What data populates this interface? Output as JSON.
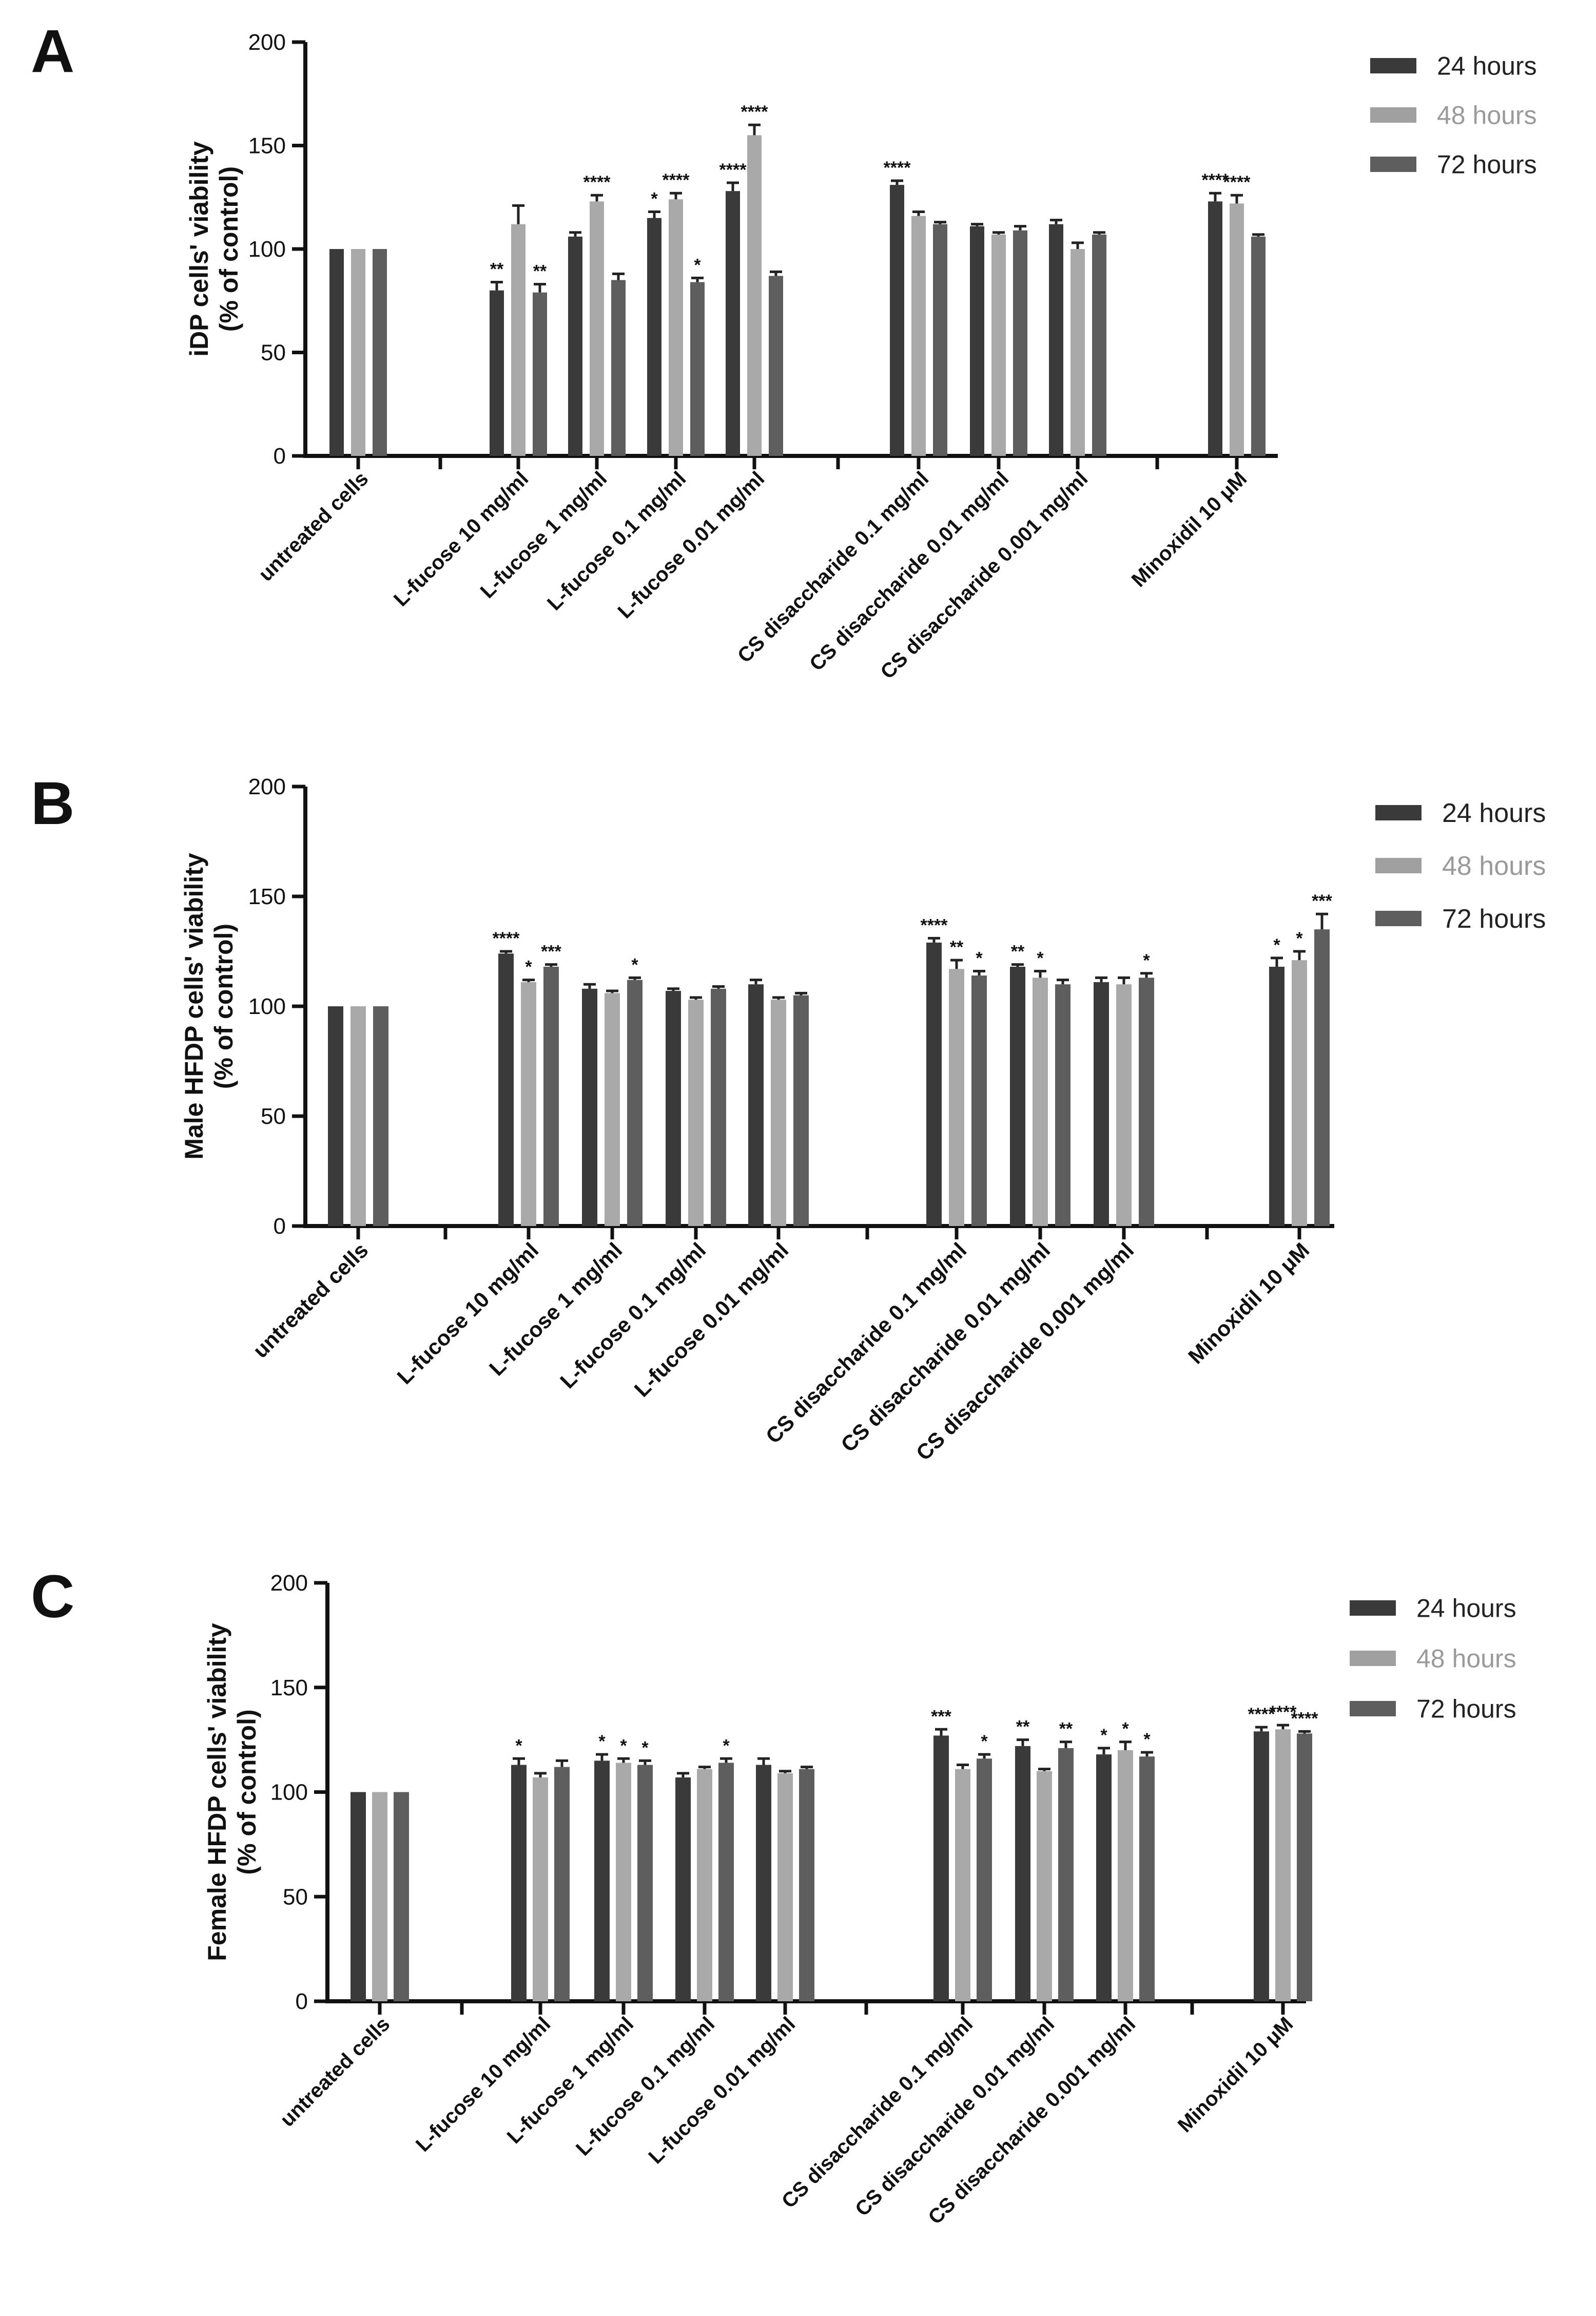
{
  "colors": {
    "24": "#3a3a3a",
    "48": "#a9a9a9",
    "72": "#5e5e5e"
  },
  "legend": [
    {
      "label": "24 hours",
      "color": "#3a3a3a"
    },
    {
      "label": "48 hours",
      "color": "#a0a0a0"
    },
    {
      "label": "72 hours",
      "color": "#5e5e5e"
    }
  ],
  "chart_data": [
    {
      "panel": "A",
      "type": "bar",
      "ylabel": [
        "iDP cells' viability",
        "(% of control)"
      ],
      "ylim": [
        0,
        200
      ],
      "yticks": [
        0,
        50,
        100,
        150,
        200
      ],
      "series_names": [
        "24 hours",
        "48 hours",
        "72 hours"
      ],
      "groups": [
        {
          "label": "untreated cells",
          "values": [
            100,
            100,
            100
          ],
          "errors": [
            0,
            0,
            0
          ],
          "sig": [
            "",
            "",
            ""
          ]
        },
        {
          "label": "L-fucose 10 mg/ml",
          "values": [
            80,
            112,
            79
          ],
          "errors": [
            4,
            9,
            4
          ],
          "sig": [
            "**",
            "",
            "**"
          ]
        },
        {
          "label": "L-fucose 1 mg/ml",
          "values": [
            106,
            123,
            85
          ],
          "errors": [
            2,
            3,
            3
          ],
          "sig": [
            "",
            "****",
            ""
          ]
        },
        {
          "label": "L-fucose 0.1 mg/ml",
          "values": [
            115,
            124,
            84
          ],
          "errors": [
            3,
            3,
            2
          ],
          "sig": [
            "*",
            "****",
            "*"
          ]
        },
        {
          "label": "L-fucose 0.01 mg/ml",
          "values": [
            128,
            155,
            87
          ],
          "errors": [
            4,
            5,
            2
          ],
          "sig": [
            "****",
            "****",
            ""
          ]
        },
        {
          "label": "CS disaccharide 0.1 mg/ml",
          "values": [
            131,
            116,
            112
          ],
          "errors": [
            2,
            2,
            1
          ],
          "sig": [
            "****",
            "",
            ""
          ]
        },
        {
          "label": "CS disaccharide 0.01 mg/ml",
          "values": [
            111,
            107,
            109
          ],
          "errors": [
            1,
            1,
            2
          ],
          "sig": [
            "",
            "",
            ""
          ]
        },
        {
          "label": "CS disaccharide 0.001 mg/ml",
          "values": [
            112,
            100,
            107
          ],
          "errors": [
            2,
            3,
            1
          ],
          "sig": [
            "",
            "",
            ""
          ]
        },
        {
          "label": "Minoxidil 10 μM",
          "values": [
            123,
            122,
            106
          ],
          "errors": [
            4,
            4,
            1
          ],
          "sig": [
            "****",
            "****",
            ""
          ]
        }
      ]
    },
    {
      "panel": "B",
      "type": "bar",
      "ylabel": [
        "Male HFDP cells' viability",
        "(% of control)"
      ],
      "ylim": [
        0,
        200
      ],
      "yticks": [
        0,
        50,
        100,
        150,
        200
      ],
      "series_names": [
        "24 hours",
        "48 hours",
        "72 hours"
      ],
      "groups": [
        {
          "label": "untreated cells",
          "values": [
            100,
            100,
            100
          ],
          "errors": [
            0,
            0,
            0
          ],
          "sig": [
            "",
            "",
            ""
          ]
        },
        {
          "label": "L-fucose 10 mg/ml",
          "values": [
            124,
            111,
            118
          ],
          "errors": [
            1,
            1,
            1
          ],
          "sig": [
            "****",
            "*",
            "***"
          ]
        },
        {
          "label": "L-fucose 1 mg/ml",
          "values": [
            108,
            106,
            112
          ],
          "errors": [
            2,
            1,
            1
          ],
          "sig": [
            "",
            "",
            "*"
          ]
        },
        {
          "label": "L-fucose 0.1 mg/ml",
          "values": [
            107,
            103,
            108
          ],
          "errors": [
            1,
            1,
            1
          ],
          "sig": [
            "",
            "",
            ""
          ]
        },
        {
          "label": "L-fucose 0.01 mg/ml",
          "values": [
            110,
            103,
            105
          ],
          "errors": [
            2,
            1,
            1
          ],
          "sig": [
            "",
            "",
            ""
          ]
        },
        {
          "label": "CS disaccharide 0.1 mg/ml",
          "values": [
            129,
            117,
            114
          ],
          "errors": [
            2,
            4,
            2
          ],
          "sig": [
            "****",
            "**",
            "*"
          ]
        },
        {
          "label": "CS disaccharide 0.01 mg/ml",
          "values": [
            118,
            113,
            110
          ],
          "errors": [
            1,
            3,
            2
          ],
          "sig": [
            "**",
            "*",
            ""
          ]
        },
        {
          "label": "CS disaccharide 0.001 mg/ml",
          "values": [
            111,
            110,
            113
          ],
          "errors": [
            2,
            3,
            2
          ],
          "sig": [
            "",
            "",
            "*"
          ]
        },
        {
          "label": "Minoxidil 10 μM",
          "values": [
            118,
            121,
            135
          ],
          "errors": [
            4,
            4,
            7
          ],
          "sig": [
            "*",
            "*",
            "***"
          ]
        }
      ]
    },
    {
      "panel": "C",
      "type": "bar",
      "ylabel": [
        "Female HFDP cells' viability",
        "(% of control)"
      ],
      "ylim": [
        0,
        200
      ],
      "yticks": [
        0,
        50,
        100,
        150,
        200
      ],
      "series_names": [
        "24 hours",
        "48 hours",
        "72 hours"
      ],
      "groups": [
        {
          "label": "untreated cells",
          "values": [
            100,
            100,
            100
          ],
          "errors": [
            0,
            0,
            0
          ],
          "sig": [
            "",
            "",
            ""
          ]
        },
        {
          "label": "L-fucose 10 mg/ml",
          "values": [
            113,
            107,
            112
          ],
          "errors": [
            3,
            2,
            3
          ],
          "sig": [
            "*",
            "",
            ""
          ]
        },
        {
          "label": "L-fucose 1 mg/ml",
          "values": [
            115,
            114,
            113
          ],
          "errors": [
            3,
            2,
            2
          ],
          "sig": [
            "*",
            "*",
            "*"
          ]
        },
        {
          "label": "L-fucose 0.1 mg/ml",
          "values": [
            107,
            111,
            114
          ],
          "errors": [
            2,
            1,
            2
          ],
          "sig": [
            "",
            "",
            "*"
          ]
        },
        {
          "label": "L-fucose 0.01 mg/ml",
          "values": [
            113,
            109,
            111
          ],
          "errors": [
            3,
            1,
            1
          ],
          "sig": [
            "",
            "",
            ""
          ]
        },
        {
          "label": "CS disaccharide 0.1 mg/ml",
          "values": [
            127,
            111,
            116
          ],
          "errors": [
            3,
            2,
            2
          ],
          "sig": [
            "***",
            "",
            "*"
          ]
        },
        {
          "label": "CS disaccharide 0.01 mg/ml",
          "values": [
            122,
            110,
            121
          ],
          "errors": [
            3,
            1,
            3
          ],
          "sig": [
            "**",
            "",
            "**"
          ]
        },
        {
          "label": "CS disaccharide 0.001 mg/ml",
          "values": [
            118,
            120,
            117
          ],
          "errors": [
            3,
            4,
            2
          ],
          "sig": [
            "*",
            "*",
            "*"
          ]
        },
        {
          "label": "Minoxidil 10 μM",
          "values": [
            129,
            130,
            128
          ],
          "errors": [
            2,
            2,
            1
          ],
          "sig": [
            "****",
            "****",
            "****"
          ]
        }
      ]
    }
  ]
}
